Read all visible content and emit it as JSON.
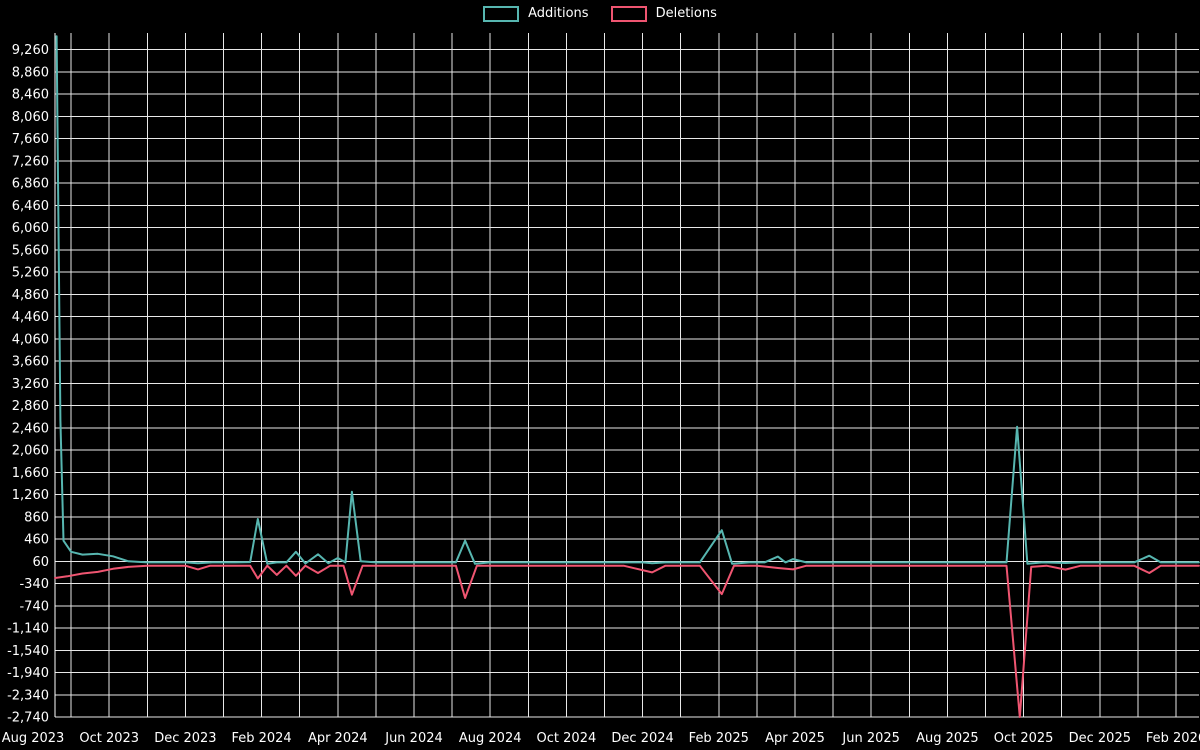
{
  "page": {
    "background_color": "#000000",
    "grid_color": "#e8e8e8",
    "text_color": "#ffffff"
  },
  "legend": {
    "items": [
      {
        "label": "Additions",
        "color": "#57b6b0"
      },
      {
        "label": "Deletions",
        "color": "#ef5571"
      }
    ]
  },
  "chart_data": {
    "type": "line",
    "title": "",
    "xlabel": "",
    "ylabel": "",
    "legend_position": "top-center",
    "grid": true,
    "y_axis": {
      "min": -2740,
      "max": 9560,
      "tick_step": 400,
      "tick_values": [
        9260,
        8860,
        8460,
        8060,
        7660,
        7260,
        6860,
        6460,
        6060,
        5660,
        5260,
        4860,
        4460,
        4060,
        3660,
        3260,
        2860,
        2460,
        2060,
        1660,
        1260,
        860,
        460,
        60,
        -340,
        -740,
        -1140,
        -1540,
        -1940,
        -2340,
        -2740
      ],
      "tick_labels": [
        "9,260",
        "8,860",
        "8,460",
        "8,060",
        "7,660",
        "7,260",
        "6,860",
        "6,460",
        "6,060",
        "5,660",
        "5,260",
        "4,860",
        "4,460",
        "4,060",
        "3,660",
        "3,260",
        "2,860",
        "2,460",
        "2,060",
        "1,660",
        "1,260",
        "860",
        "460",
        "60",
        "-340",
        "-740",
        "-1,140",
        "-1,540",
        "-1,940",
        "-2,340",
        "-2,740"
      ]
    },
    "x_axis": {
      "unit": "months since Aug 2023",
      "months_total": 31,
      "tick_month_index": [
        0,
        2,
        4,
        6,
        8,
        10,
        12,
        14,
        16,
        18,
        20,
        22,
        24,
        26,
        28,
        30
      ],
      "tick_labels": [
        "Aug 2023",
        "Oct 2023",
        "Dec 2023",
        "Feb 2024",
        "Apr 2024",
        "Jun 2024",
        "Aug 2024",
        "Oct 2024",
        "Dec 2024",
        "Feb 2025",
        "Apr 2025",
        "Jun 2025",
        "Aug 2025",
        "Oct 2025",
        "Dec 2025",
        "Feb 2026"
      ]
    },
    "series": [
      {
        "name": "Additions",
        "color": "#57b6b0",
        "points": [
          [
            0.62,
            9500
          ],
          [
            0.72,
            2600
          ],
          [
            0.8,
            430
          ],
          [
            1.0,
            230
          ],
          [
            1.3,
            180
          ],
          [
            1.7,
            195
          ],
          [
            2.1,
            150
          ],
          [
            2.5,
            60
          ],
          [
            3.0,
            40
          ],
          [
            3.6,
            40
          ],
          [
            4.0,
            40
          ],
          [
            4.33,
            25
          ],
          [
            4.7,
            40
          ],
          [
            5.3,
            40
          ],
          [
            5.7,
            45
          ],
          [
            5.9,
            820
          ],
          [
            6.15,
            15
          ],
          [
            6.4,
            40
          ],
          [
            6.65,
            40
          ],
          [
            6.9,
            230
          ],
          [
            7.15,
            20
          ],
          [
            7.48,
            185
          ],
          [
            7.75,
            25
          ],
          [
            8.0,
            120
          ],
          [
            8.2,
            40
          ],
          [
            8.37,
            1310
          ],
          [
            8.6,
            60
          ],
          [
            9.0,
            40
          ],
          [
            9.5,
            40
          ],
          [
            10.5,
            40
          ],
          [
            11.1,
            40
          ],
          [
            11.34,
            430
          ],
          [
            11.6,
            15
          ],
          [
            12.0,
            40
          ],
          [
            13.0,
            40
          ],
          [
            14.0,
            40
          ],
          [
            15.0,
            40
          ],
          [
            16.0,
            40
          ],
          [
            16.25,
            25
          ],
          [
            16.6,
            40
          ],
          [
            17.5,
            40
          ],
          [
            18.08,
            620
          ],
          [
            18.35,
            15
          ],
          [
            18.8,
            40
          ],
          [
            19.2,
            40
          ],
          [
            19.55,
            145
          ],
          [
            19.75,
            40
          ],
          [
            19.95,
            100
          ],
          [
            20.3,
            40
          ],
          [
            21.0,
            40
          ],
          [
            22.0,
            40
          ],
          [
            23.0,
            40
          ],
          [
            24.0,
            40
          ],
          [
            25.0,
            40
          ],
          [
            25.55,
            40
          ],
          [
            25.83,
            2480
          ],
          [
            26.1,
            15
          ],
          [
            26.5,
            40
          ],
          [
            27.1,
            30
          ],
          [
            27.5,
            40
          ],
          [
            28.2,
            40
          ],
          [
            28.9,
            40
          ],
          [
            29.3,
            160
          ],
          [
            29.6,
            40
          ],
          [
            30.1,
            40
          ],
          [
            30.6,
            40
          ]
        ]
      },
      {
        "name": "Deletions",
        "color": "#ef5571",
        "points": [
          [
            0.58,
            -240
          ],
          [
            0.9,
            -210
          ],
          [
            1.3,
            -160
          ],
          [
            1.7,
            -130
          ],
          [
            2.1,
            -75
          ],
          [
            2.5,
            -40
          ],
          [
            3.0,
            -20
          ],
          [
            3.6,
            -20
          ],
          [
            4.0,
            -20
          ],
          [
            4.33,
            -85
          ],
          [
            4.65,
            -20
          ],
          [
            5.3,
            -20
          ],
          [
            5.7,
            -20
          ],
          [
            5.9,
            -250
          ],
          [
            6.15,
            -20
          ],
          [
            6.4,
            -185
          ],
          [
            6.65,
            -20
          ],
          [
            6.9,
            -200
          ],
          [
            7.15,
            -20
          ],
          [
            7.48,
            -150
          ],
          [
            7.8,
            -20
          ],
          [
            8.15,
            -20
          ],
          [
            8.37,
            -540
          ],
          [
            8.65,
            -20
          ],
          [
            9.5,
            -20
          ],
          [
            10.5,
            -20
          ],
          [
            11.1,
            -20
          ],
          [
            11.34,
            -600
          ],
          [
            11.65,
            -20
          ],
          [
            12.5,
            -20
          ],
          [
            13.5,
            -20
          ],
          [
            14.5,
            -20
          ],
          [
            15.5,
            -20
          ],
          [
            16.25,
            -140
          ],
          [
            16.6,
            -20
          ],
          [
            17.5,
            -20
          ],
          [
            18.08,
            -530
          ],
          [
            18.4,
            -20
          ],
          [
            19.0,
            -20
          ],
          [
            19.55,
            -60
          ],
          [
            19.95,
            -85
          ],
          [
            20.3,
            -20
          ],
          [
            21.0,
            -20
          ],
          [
            22.0,
            -20
          ],
          [
            23.0,
            -20
          ],
          [
            24.0,
            -20
          ],
          [
            25.0,
            -20
          ],
          [
            25.55,
            -20
          ],
          [
            25.9,
            -2740
          ],
          [
            26.2,
            -40
          ],
          [
            26.6,
            -20
          ],
          [
            27.1,
            -90
          ],
          [
            27.5,
            -20
          ],
          [
            28.2,
            -20
          ],
          [
            28.9,
            -20
          ],
          [
            29.3,
            -150
          ],
          [
            29.6,
            -20
          ],
          [
            30.1,
            -20
          ],
          [
            30.6,
            -20
          ]
        ]
      }
    ]
  }
}
